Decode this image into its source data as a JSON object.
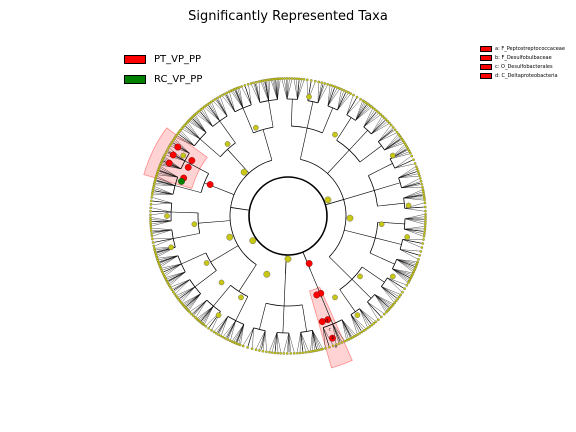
{
  "title": "Significantly Represented Taxa",
  "groups": [
    {
      "name": "PT_VP_PP",
      "color": "#ff0000"
    },
    {
      "name": "RC_VP_PP",
      "color": "#008000"
    }
  ],
  "clade_legend": [
    {
      "label": "a: F_Peptostreptococcaceae",
      "color": "#ff0000"
    },
    {
      "label": "b: F_Desulfobulbaceae",
      "color": "#ff0000"
    },
    {
      "label": "c: O_Desulfobacterales",
      "color": "#ff0000"
    },
    {
      "label": "d: C_Deltaproteobacteria",
      "color": "#ff0000"
    }
  ],
  "clade_markers": [
    "a",
    "b",
    "c",
    "d"
  ],
  "colors": {
    "node_default": "#c8c814",
    "branch": "#000000",
    "highlight_fill": "#ff8080"
  }
}
